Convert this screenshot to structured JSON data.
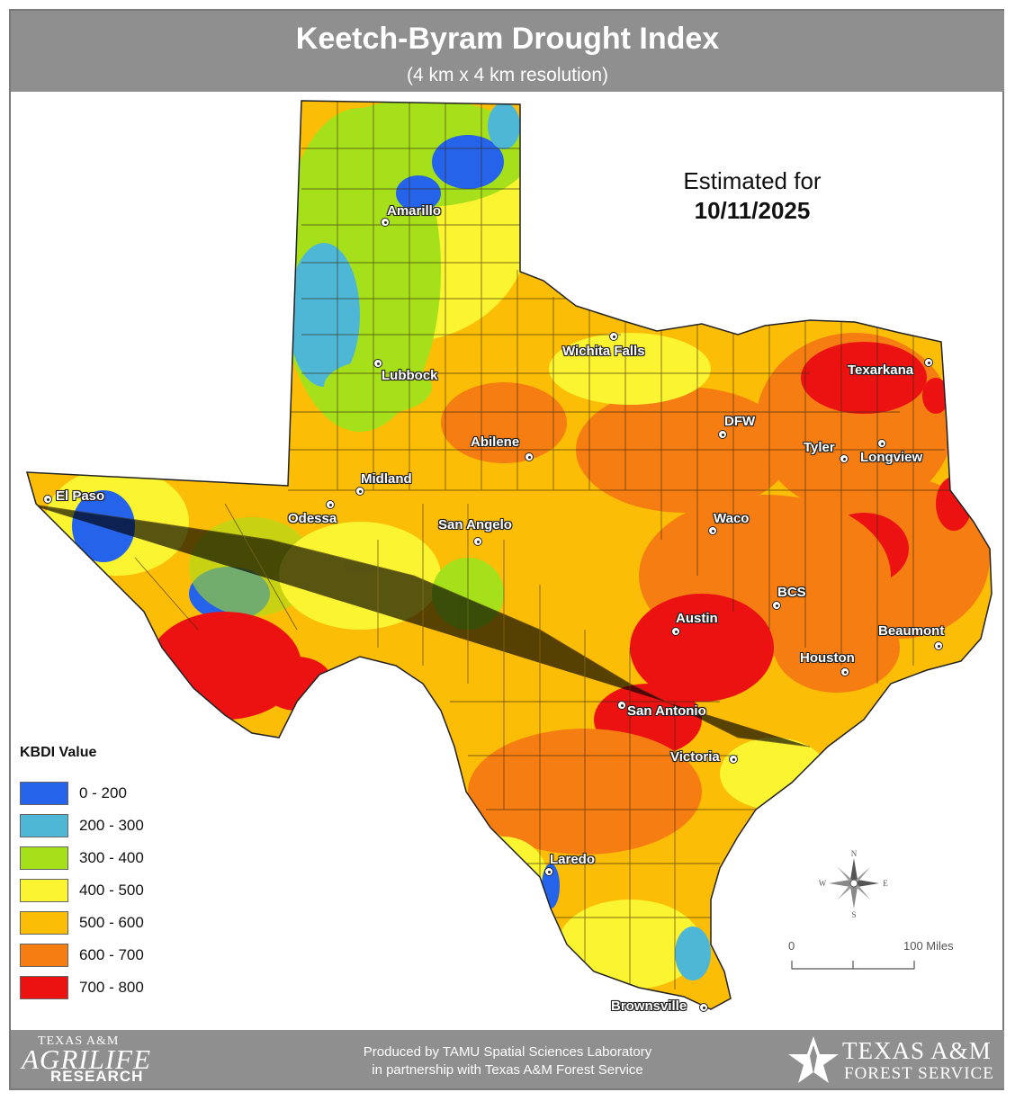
{
  "header": {
    "title": "Keetch-Byram Drought Index",
    "subtitle": "(4 km x 4 km resolution)"
  },
  "estimate": {
    "label": "Estimated for",
    "date": "10/11/2025"
  },
  "legend": {
    "title": "KBDI Value",
    "classes": [
      {
        "label": "0 - 200",
        "color": "#2563eb"
      },
      {
        "label": "200 - 300",
        "color": "#4eb7d6"
      },
      {
        "label": "300 - 400",
        "color": "#a6e01b"
      },
      {
        "label": "400 - 500",
        "color": "#fbf431"
      },
      {
        "label": "500 - 600",
        "color": "#fcbd06"
      },
      {
        "label": "600 - 700",
        "color": "#f57d12"
      },
      {
        "label": "700 - 800",
        "color": "#ec1212"
      }
    ]
  },
  "cities": [
    {
      "name": "Amarillo"
    },
    {
      "name": "Lubbock"
    },
    {
      "name": "Wichita Falls"
    },
    {
      "name": "Texarkana"
    },
    {
      "name": "DFW"
    },
    {
      "name": "Tyler"
    },
    {
      "name": "Longview"
    },
    {
      "name": "Abilene"
    },
    {
      "name": "Midland"
    },
    {
      "name": "Odessa"
    },
    {
      "name": "El Paso"
    },
    {
      "name": "San Angelo"
    },
    {
      "name": "Waco"
    },
    {
      "name": "BCS"
    },
    {
      "name": "Austin"
    },
    {
      "name": "Beaumont"
    },
    {
      "name": "Houston"
    },
    {
      "name": "San Antonio"
    },
    {
      "name": "Victoria"
    },
    {
      "name": "Laredo"
    },
    {
      "name": "Brownsville"
    }
  ],
  "scale_bar": {
    "start": "0",
    "end": "100 Miles"
  },
  "compass": {
    "n": "N",
    "s": "S",
    "e": "E",
    "w": "W"
  },
  "footer": {
    "credit_line1": "Produced by TAMU Spatial Sciences Laboratory",
    "credit_line2": "in partnership with Texas A&M Forest Service",
    "logo_left": {
      "line1": "TEXAS A&M",
      "line2": "AGRILIFE",
      "line3": "RESEARCH"
    },
    "logo_right": {
      "line1": "TEXAS A&M",
      "line2": "FOREST SERVICE"
    }
  }
}
